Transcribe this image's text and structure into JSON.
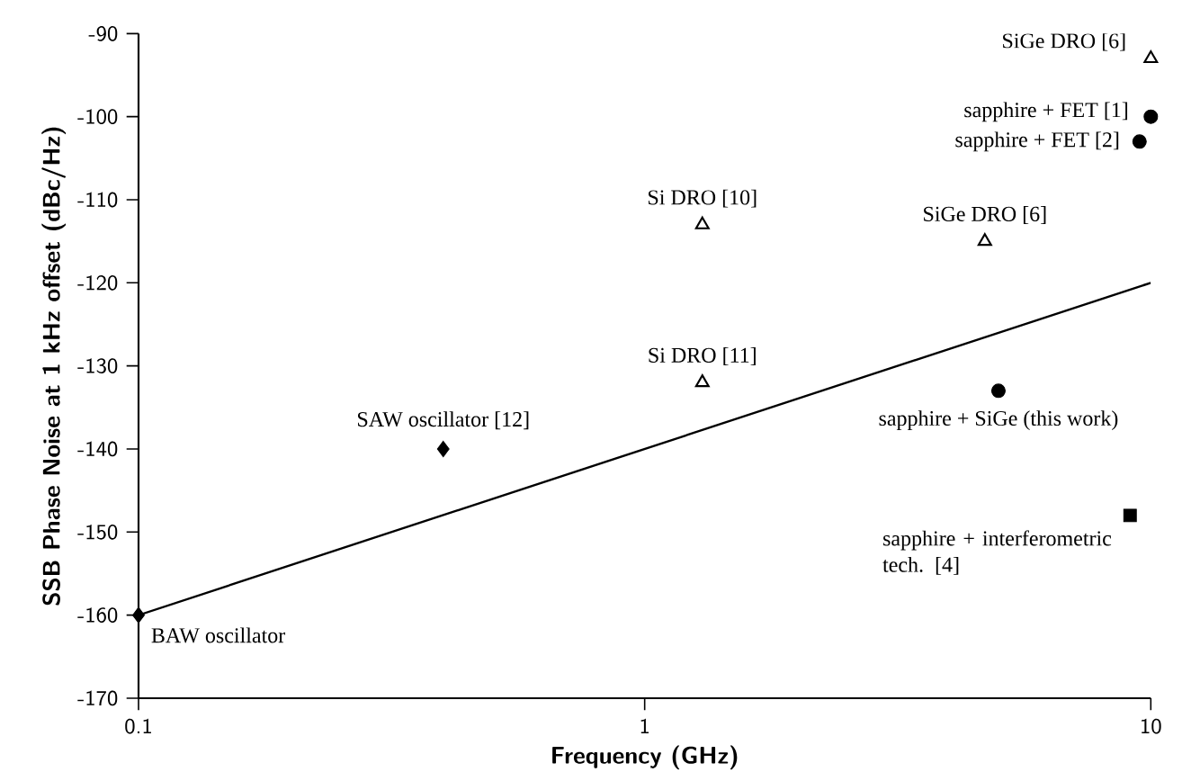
{
  "chart_data": {
    "type": "scatter",
    "xlabel": "Frequency (GHz)",
    "ylabel": "SSB Phase Noise at 1 kHz offset (dBc/Hz)",
    "log": "x",
    "xlim": [
      0.1,
      10
    ],
    "xticks": [
      0.1,
      1,
      10
    ],
    "ylim": [
      -170,
      -90
    ],
    "yticks": [
      -170,
      -160,
      -150,
      -140,
      -130,
      -120,
      -110,
      -100,
      -90
    ],
    "grid": false,
    "series": [
      {
        "color": "#000000",
        "marker": "diamond",
        "x": [
          0.1,
          0.4
        ],
        "values": [
          -160,
          -140
        ]
      },
      {
        "color": "#000000",
        "marker": "triangle",
        "x": [
          10,
          1.3,
          4.7,
          1.3
        ],
        "values": [
          -93,
          -113,
          -115,
          -132
        ]
      },
      {
        "color": "#000000",
        "marker": "circle",
        "x": [
          10,
          9.5,
          5.0
        ],
        "values": [
          -100,
          -103,
          -133
        ]
      },
      {
        "color": "#000000",
        "marker": "square",
        "x": [
          9.1
        ],
        "values": [
          -148
        ]
      },
      {
        "type": "line",
        "color": "#000000",
        "marker": "none",
        "line_style": "solid",
        "x": [
          0.1,
          10
        ],
        "values": [
          -160,
          -120
        ]
      }
    ],
    "annotations": [
      {
        "text": "SiGe DRO [6]",
        "x": 10,
        "y": -93
      },
      {
        "text": "sapphire + FET [1]",
        "x": 10,
        "y": -100
      },
      {
        "text": "sapphire + FET [2]",
        "x": 9.5,
        "y": -103
      },
      {
        "text": "Si DRO [10]",
        "x": 1.3,
        "y": -113
      },
      {
        "text": "SiGe DRO [6]",
        "x": 4.7,
        "y": -115
      },
      {
        "text": "Si DRO [11]",
        "x": 1.3,
        "y": -132
      },
      {
        "text": "sapphire + SiGe (this work)",
        "x": 5.0,
        "y": -133
      },
      {
        "text": "SAW oscillator [12]",
        "x": 0.4,
        "y": -140
      },
      {
        "text": "BAW oscillator",
        "x": 0.1,
        "y": -160
      },
      {
        "text": "sapphire + interferometric tech. [4]",
        "x": 9.1,
        "y": -148
      }
    ]
  }
}
